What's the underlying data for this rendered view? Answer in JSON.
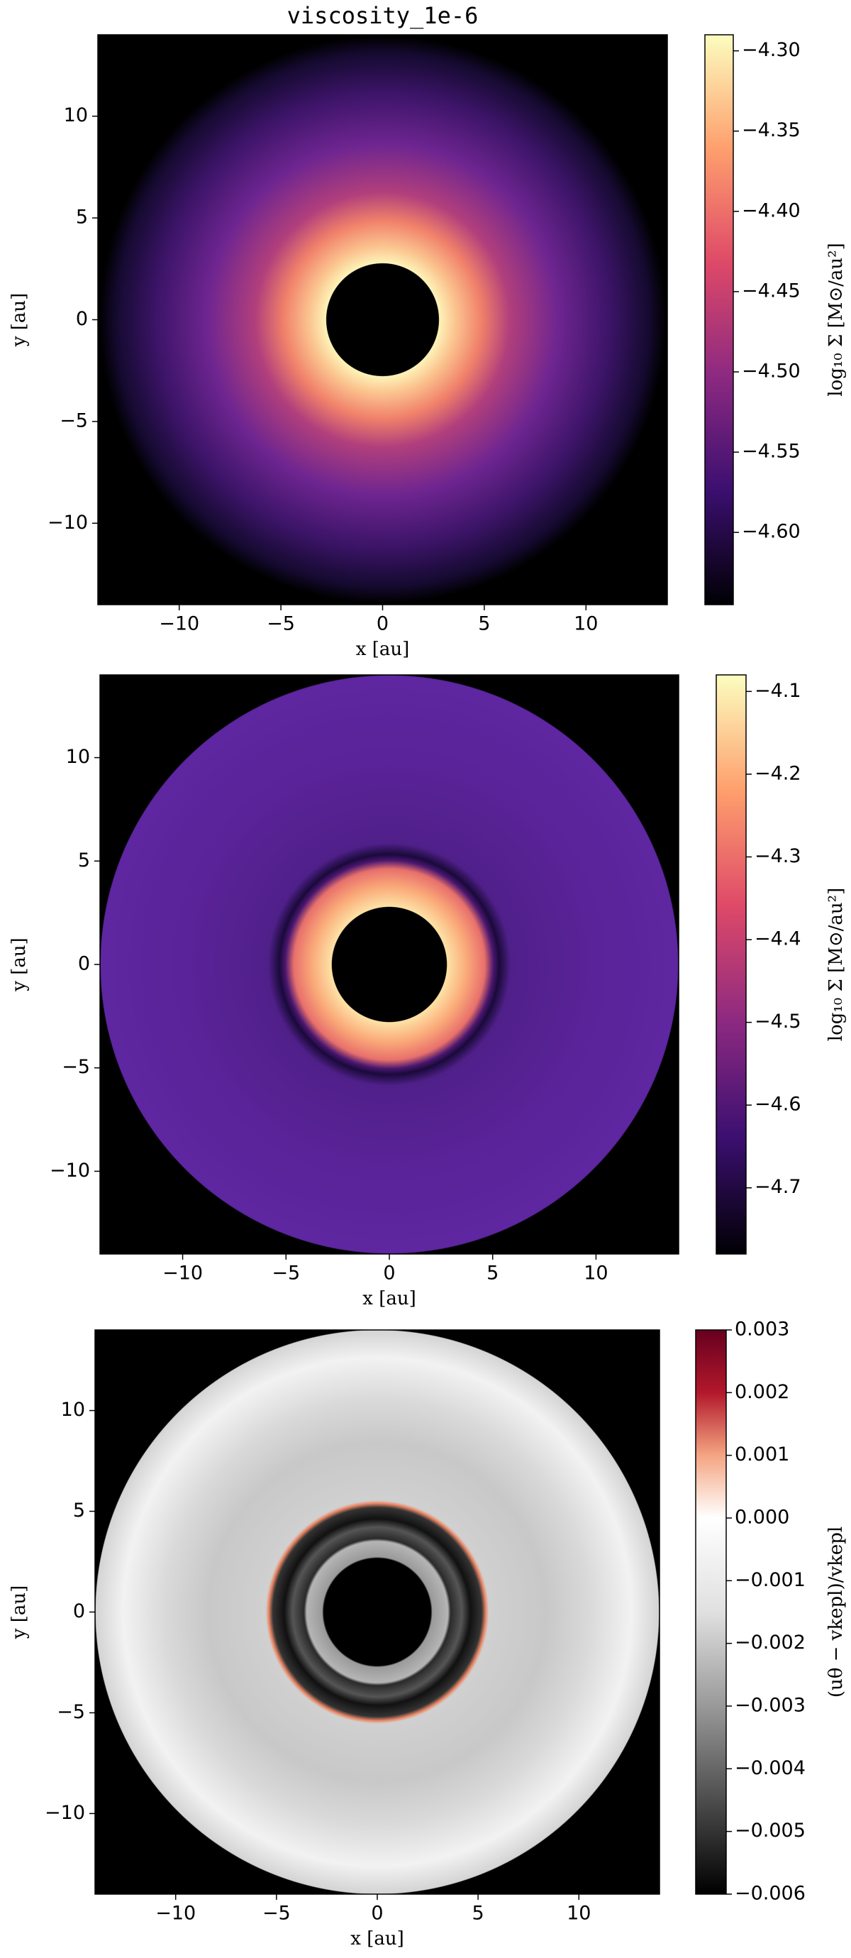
{
  "chart_data": [
    {
      "type": "heatmap",
      "title": "viscosity_1e-6",
      "xlabel": "x [au]",
      "ylabel": "y [au]",
      "xlim": [
        -14,
        14
      ],
      "ylim": [
        -14,
        14
      ],
      "xticks": [
        {
          "value": -10,
          "label": "−10"
        },
        {
          "value": -5,
          "label": "−5"
        },
        0,
        5,
        10
      ],
      "yticks": [
        {
          "value": -10,
          "label": "−10"
        },
        {
          "value": -5,
          "label": "−5"
        },
        0,
        5,
        10
      ],
      "colorbar": {
        "label": "log₁₀ Σ [M⊙/au²]",
        "clim": [
          -4.645,
          -4.29
        ],
        "colors": [
          "#000004",
          "#3b0f70",
          "#8c2981",
          "#de4968",
          "#fe9f6d",
          "#fcfdbf"
        ],
        "cticks": [
          {
            "value": -4.3,
            "label": "−4.30"
          },
          {
            "value": -4.35,
            "label": "−4.35"
          },
          {
            "value": -4.4,
            "label": "−4.40"
          },
          {
            "value": -4.45,
            "label": "−4.45"
          },
          {
            "value": -4.5,
            "label": "−4.50"
          },
          {
            "value": -4.55,
            "label": "−4.55"
          },
          {
            "value": -4.6,
            "label": "−4.60"
          }
        ]
      }
    },
    {
      "type": "heatmap",
      "xlabel": "x [au]",
      "ylabel": "y [au]",
      "xlim": [
        -14,
        14
      ],
      "ylim": [
        -14,
        14
      ],
      "xticks": [
        {
          "value": -10,
          "label": "−10"
        },
        {
          "value": -5,
          "label": "−5"
        },
        0,
        5,
        10
      ],
      "yticks": [
        {
          "value": -10,
          "label": "−10"
        },
        {
          "value": -5,
          "label": "−5"
        },
        0,
        5,
        10
      ],
      "colorbar": {
        "label": "log₁₀ Σ [M⊙/au²]",
        "clim": [
          -4.78,
          -4.08
        ],
        "colors": [
          "#000004",
          "#3b0f70",
          "#8c2981",
          "#de4968",
          "#fe9f6d",
          "#fcfdbf"
        ],
        "cticks": [
          {
            "value": -4.1,
            "label": "−4.1"
          },
          {
            "value": -4.2,
            "label": "−4.2"
          },
          {
            "value": -4.3,
            "label": "−4.3"
          },
          {
            "value": -4.4,
            "label": "−4.4"
          },
          {
            "value": -4.5,
            "label": "−4.5"
          },
          {
            "value": -4.6,
            "label": "−4.6"
          },
          {
            "value": -4.7,
            "label": "−4.7"
          }
        ]
      }
    },
    {
      "type": "heatmap",
      "xlabel": "x [au]",
      "ylabel": "y [au]",
      "xlim": [
        -14,
        14
      ],
      "ylim": [
        -14,
        14
      ],
      "xticks": [
        {
          "value": -10,
          "label": "−10"
        },
        {
          "value": -5,
          "label": "−5"
        },
        0,
        5,
        10
      ],
      "yticks": [
        {
          "value": -10,
          "label": "−10"
        },
        {
          "value": -5,
          "label": "−5"
        },
        0,
        5,
        10
      ],
      "colorbar": {
        "label": "(uθ − vkepl)/vkepl",
        "clim": [
          -0.006,
          0.003
        ],
        "colors": [
          "#000000",
          "#4d4d4d",
          "#999999",
          "#e0e0e0",
          "#ffffff",
          "#f4a582",
          "#b2182b",
          "#67001f"
        ],
        "cticks": [
          {
            "value": 0.003,
            "label": "0.003"
          },
          {
            "value": 0.002,
            "label": "0.002"
          },
          {
            "value": 0.001,
            "label": "0.001"
          },
          {
            "value": 0,
            "label": "0.000"
          },
          {
            "value": -0.001,
            "label": "−0.001"
          },
          {
            "value": -0.002,
            "label": "−0.002"
          },
          {
            "value": -0.003,
            "label": "−0.003"
          },
          {
            "value": -0.004,
            "label": "−0.004"
          },
          {
            "value": -0.005,
            "label": "−0.005"
          },
          {
            "value": -0.006,
            "label": "−0.006"
          }
        ]
      }
    }
  ]
}
